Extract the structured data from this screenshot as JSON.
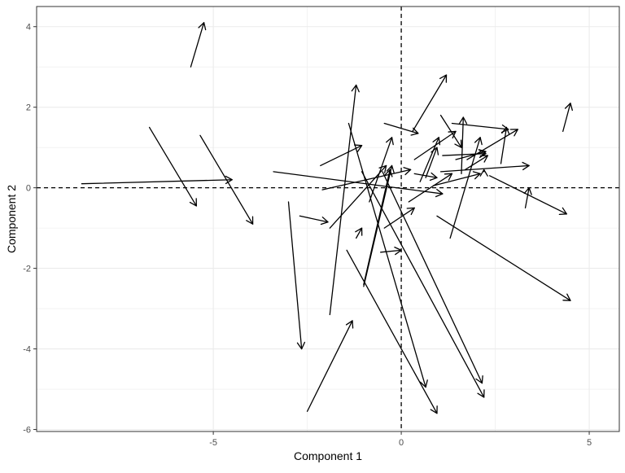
{
  "chart_data": {
    "type": "vector-field",
    "title": "",
    "xlabel": "Component 1",
    "ylabel": "Component 2",
    "xlim": [
      -9.7,
      5.8
    ],
    "ylim": [
      -6.05,
      4.5
    ],
    "xticks": [
      -5,
      0,
      5
    ],
    "yticks": [
      -6,
      -4,
      -2,
      0,
      2,
      4
    ],
    "grid": true,
    "reference_lines": [
      {
        "axis": "x",
        "value": 0,
        "style": "dashed"
      },
      {
        "axis": "y",
        "value": 0,
        "style": "dashed"
      }
    ],
    "colors": {
      "arrow": "#000000",
      "grid": "#ebebeb",
      "axis": "#333333",
      "tick_label": "#4d4d4d"
    },
    "arrows": [
      {
        "x0": -5.6,
        "y0": 3.0,
        "x1": -5.25,
        "y1": 4.1
      },
      {
        "x0": -8.5,
        "y0": 0.1,
        "x1": -4.5,
        "y1": 0.2
      },
      {
        "x0": -6.7,
        "y0": 1.5,
        "x1": -5.45,
        "y1": -0.45
      },
      {
        "x0": -5.35,
        "y0": 1.3,
        "x1": -3.95,
        "y1": -0.9
      },
      {
        "x0": -3.4,
        "y0": 0.4,
        "x1": 1.1,
        "y1": -0.15
      },
      {
        "x0": -3.0,
        "y0": -0.35,
        "x1": -2.65,
        "y1": -4.0
      },
      {
        "x0": -2.7,
        "y0": -0.7,
        "x1": -1.95,
        "y1": -0.85
      },
      {
        "x0": -1.9,
        "y0": -3.15,
        "x1": -1.2,
        "y1": 2.55
      },
      {
        "x0": -2.15,
        "y0": 0.55,
        "x1": -1.05,
        "y1": 1.05
      },
      {
        "x0": -1.4,
        "y0": 1.6,
        "x1": 0.65,
        "y1": -4.95
      },
      {
        "x0": -1.45,
        "y0": -1.55,
        "x1": 0.95,
        "y1": -5.6
      },
      {
        "x0": -2.5,
        "y0": -5.55,
        "x1": -1.3,
        "y1": -3.3
      },
      {
        "x0": -1.9,
        "y0": -1.0,
        "x1": -0.4,
        "y1": 0.55
      },
      {
        "x0": -1.2,
        "y0": -1.25,
        "x1": -1.05,
        "y1": -1.0
      },
      {
        "x0": -1.0,
        "y0": -2.45,
        "x1": -0.25,
        "y1": 0.55
      },
      {
        "x0": -1.05,
        "y0": 0.4,
        "x1": 2.2,
        "y1": -5.2
      },
      {
        "x0": -0.5,
        "y0": 0.4,
        "x1": 2.15,
        "y1": -4.85
      },
      {
        "x0": -0.85,
        "y0": -0.35,
        "x1": -0.25,
        "y1": 1.25
      },
      {
        "x0": -0.55,
        "y0": -1.6,
        "x1": 0.0,
        "y1": -1.55
      },
      {
        "x0": -0.45,
        "y0": -1.0,
        "x1": 0.35,
        "y1": -0.5
      },
      {
        "x0": -1.0,
        "y0": -2.4,
        "x1": -0.3,
        "y1": 0.45
      },
      {
        "x0": -2.1,
        "y0": -0.05,
        "x1": 0.25,
        "y1": 0.45
      },
      {
        "x0": -0.45,
        "y0": 1.6,
        "x1": 0.45,
        "y1": 1.35
      },
      {
        "x0": 0.3,
        "y0": 1.4,
        "x1": 1.2,
        "y1": 2.8
      },
      {
        "x0": 0.35,
        "y0": 0.35,
        "x1": 0.95,
        "y1": 0.25
      },
      {
        "x0": 0.2,
        "y0": -0.35,
        "x1": 1.35,
        "y1": 0.35
      },
      {
        "x0": 0.35,
        "y0": 0.7,
        "x1": 1.45,
        "y1": 1.4
      },
      {
        "x0": 0.5,
        "y0": 0.15,
        "x1": 1.0,
        "y1": 1.25
      },
      {
        "x0": 0.65,
        "y0": 0.25,
        "x1": 0.95,
        "y1": 1.0
      },
      {
        "x0": 1.05,
        "y0": 1.8,
        "x1": 1.6,
        "y1": 1.0
      },
      {
        "x0": 1.35,
        "y0": 1.6,
        "x1": 2.85,
        "y1": 1.45
      },
      {
        "x0": 1.1,
        "y0": 0.8,
        "x1": 2.25,
        "y1": 0.85
      },
      {
        "x0": 1.6,
        "y0": 0.35,
        "x1": 1.65,
        "y1": 1.75
      },
      {
        "x0": 1.3,
        "y0": -1.25,
        "x1": 2.1,
        "y1": 1.25
      },
      {
        "x0": 1.45,
        "y0": 0.7,
        "x1": 2.25,
        "y1": 0.9
      },
      {
        "x0": 1.05,
        "y0": 0.4,
        "x1": 3.4,
        "y1": 0.55
      },
      {
        "x0": 1.7,
        "y0": 0.45,
        "x1": 2.3,
        "y1": 0.8
      },
      {
        "x0": 1.75,
        "y0": 0.7,
        "x1": 3.1,
        "y1": 1.45
      },
      {
        "x0": 2.65,
        "y0": 0.6,
        "x1": 2.8,
        "y1": 1.5
      },
      {
        "x0": 2.2,
        "y0": 0.4,
        "x1": 2.2,
        "y1": 0.45
      },
      {
        "x0": 0.95,
        "y0": -0.7,
        "x1": 4.5,
        "y1": -2.8
      },
      {
        "x0": 2.35,
        "y0": 0.3,
        "x1": 4.4,
        "y1": -0.65
      },
      {
        "x0": 3.3,
        "y0": -0.5,
        "x1": 3.4,
        "y1": 0.0
      },
      {
        "x0": 4.3,
        "y0": 1.4,
        "x1": 4.5,
        "y1": 2.1
      },
      {
        "x0": 0.85,
        "y0": 0.05,
        "x1": 2.1,
        "y1": 0.35
      }
    ]
  }
}
